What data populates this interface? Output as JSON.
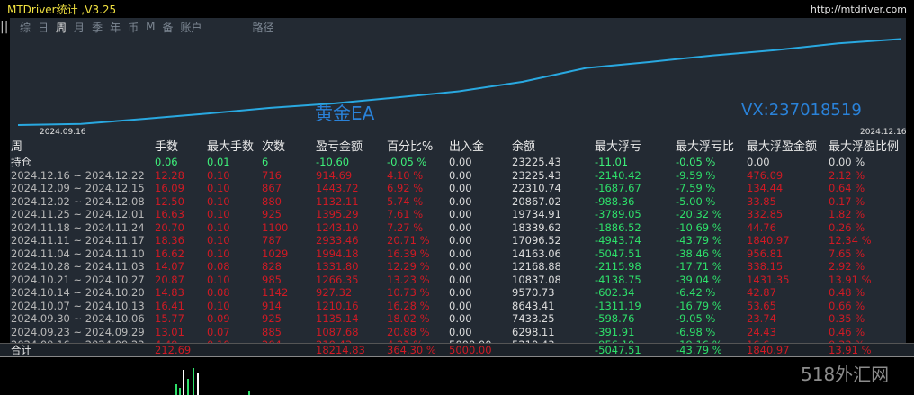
{
  "app": {
    "title": "MTDriver统计 ,V3.25",
    "url": "http://mtdriver.com"
  },
  "tabs": [
    {
      "label": "综"
    },
    {
      "label": "日"
    },
    {
      "label": "周",
      "active": true
    },
    {
      "label": "月"
    },
    {
      "label": "季"
    },
    {
      "label": "年"
    },
    {
      "label": "币"
    },
    {
      "label": "M"
    },
    {
      "label": "备"
    },
    {
      "label": "账户"
    },
    {
      "label": "路径"
    }
  ],
  "chart": {
    "watermark_left": "黄金EA",
    "watermark_right": "VX:237018519",
    "date_start": "2024.09.16",
    "date_end": "2024.12.16",
    "line_color": "#29a8e0"
  },
  "table": {
    "headers": [
      "周",
      "手数",
      "最大手数",
      "次数",
      "盈亏金额",
      "百分比%",
      "出入金",
      "余额",
      "最大浮亏",
      "最大浮亏比",
      "最大浮盈金额",
      "最大浮盈比例"
    ],
    "holding": {
      "label": "持仓",
      "lots": "0.06",
      "max_lots": "0.01",
      "count": "6",
      "pnl": "-10.60",
      "pct": "-0.05 %",
      "deposit": "0.00",
      "balance": "23225.43",
      "max_dd": "-11.01",
      "max_dd_pct": "-0.05 %",
      "max_float": "0.00",
      "max_float_pct": "0.00 %"
    },
    "rows": [
      {
        "period": "2024.12.16 ~ 2024.12.22",
        "lots": "12.28",
        "max_lots": "0.10",
        "count": "716",
        "pnl": "914.69",
        "pct": "4.10 %",
        "deposit": "0.00",
        "balance": "23225.43",
        "max_dd": "-2140.42",
        "max_dd_pct": "-9.59 %",
        "max_float": "476.09",
        "max_float_pct": "2.12 %"
      },
      {
        "period": "2024.12.09 ~ 2024.12.15",
        "lots": "16.09",
        "max_lots": "0.10",
        "count": "867",
        "pnl": "1443.72",
        "pct": "6.92 %",
        "deposit": "0.00",
        "balance": "22310.74",
        "max_dd": "-1687.67",
        "max_dd_pct": "-7.59 %",
        "max_float": "134.44",
        "max_float_pct": "0.64 %"
      },
      {
        "period": "2024.12.02 ~ 2024.12.08",
        "lots": "12.50",
        "max_lots": "0.10",
        "count": "880",
        "pnl": "1132.11",
        "pct": "5.74 %",
        "deposit": "0.00",
        "balance": "20867.02",
        "max_dd": "-988.36",
        "max_dd_pct": "-5.00 %",
        "max_float": "33.85",
        "max_float_pct": "0.17 %"
      },
      {
        "period": "2024.11.25 ~ 2024.12.01",
        "lots": "16.63",
        "max_lots": "0.10",
        "count": "925",
        "pnl": "1395.29",
        "pct": "7.61 %",
        "deposit": "0.00",
        "balance": "19734.91",
        "max_dd": "-3789.05",
        "max_dd_pct": "-20.32 %",
        "max_float": "332.85",
        "max_float_pct": "1.82 %"
      },
      {
        "period": "2024.11.18 ~ 2024.11.24",
        "lots": "20.70",
        "max_lots": "0.10",
        "count": "1100",
        "pnl": "1243.10",
        "pct": "7.27 %",
        "deposit": "0.00",
        "balance": "18339.62",
        "max_dd": "-1886.52",
        "max_dd_pct": "-10.69 %",
        "max_float": "44.76",
        "max_float_pct": "0.26 %"
      },
      {
        "period": "2024.11.11 ~ 2024.11.17",
        "lots": "18.36",
        "max_lots": "0.10",
        "count": "787",
        "pnl": "2933.46",
        "pct": "20.71 %",
        "deposit": "0.00",
        "balance": "17096.52",
        "max_dd": "-4943.74",
        "max_dd_pct": "-43.79 %",
        "max_float": "1840.97",
        "max_float_pct": "12.34 %"
      },
      {
        "period": "2024.11.04 ~ 2024.11.10",
        "lots": "16.62",
        "max_lots": "0.10",
        "count": "1029",
        "pnl": "1994.18",
        "pct": "16.39 %",
        "deposit": "0.00",
        "balance": "14163.06",
        "max_dd": "-5047.51",
        "max_dd_pct": "-38.46 %",
        "max_float": "956.81",
        "max_float_pct": "7.65 %"
      },
      {
        "period": "2024.10.28 ~ 2024.11.03",
        "lots": "14.07",
        "max_lots": "0.08",
        "count": "828",
        "pnl": "1331.80",
        "pct": "12.29 %",
        "deposit": "0.00",
        "balance": "12168.88",
        "max_dd": "-2115.98",
        "max_dd_pct": "-17.71 %",
        "max_float": "338.15",
        "max_float_pct": "2.92 %"
      },
      {
        "period": "2024.10.21 ~ 2024.10.27",
        "lots": "20.87",
        "max_lots": "0.10",
        "count": "985",
        "pnl": "1266.35",
        "pct": "13.23 %",
        "deposit": "0.00",
        "balance": "10837.08",
        "max_dd": "-4138.75",
        "max_dd_pct": "-39.04 %",
        "max_float": "1431.35",
        "max_float_pct": "13.91 %"
      },
      {
        "period": "2024.10.14 ~ 2024.10.20",
        "lots": "14.83",
        "max_lots": "0.08",
        "count": "1142",
        "pnl": "927.32",
        "pct": "10.73 %",
        "deposit": "0.00",
        "balance": "9570.73",
        "max_dd": "-602.34",
        "max_dd_pct": "-6.42 %",
        "max_float": "42.87",
        "max_float_pct": "0.48 %"
      },
      {
        "period": "2024.10.07 ~ 2024.10.13",
        "lots": "16.41",
        "max_lots": "0.10",
        "count": "914",
        "pnl": "1210.16",
        "pct": "16.28 %",
        "deposit": "0.00",
        "balance": "8643.41",
        "max_dd": "-1311.19",
        "max_dd_pct": "-16.79 %",
        "max_float": "53.65",
        "max_float_pct": "0.66 %"
      },
      {
        "period": "2024.09.30 ~ 2024.10.06",
        "lots": "15.77",
        "max_lots": "0.09",
        "count": "925",
        "pnl": "1135.14",
        "pct": "18.02 %",
        "deposit": "0.00",
        "balance": "7433.25",
        "max_dd": "-598.76",
        "max_dd_pct": "-9.05 %",
        "max_float": "23.74",
        "max_float_pct": "0.35 %"
      },
      {
        "period": "2024.09.23 ~ 2024.09.29",
        "lots": "13.01",
        "max_lots": "0.07",
        "count": "885",
        "pnl": "1087.68",
        "pct": "20.88 %",
        "deposit": "0.00",
        "balance": "6298.11",
        "max_dd": "-391.91",
        "max_dd_pct": "-6.98 %",
        "max_float": "24.43",
        "max_float_pct": "0.46 %"
      },
      {
        "period": "2024.09.16 ~ 2024.09.22",
        "lots": "4.49",
        "max_lots": "0.10",
        "count": "204",
        "pnl": "210.43",
        "pct": "4.21 %",
        "deposit": "5000.00",
        "balance": "5210.43",
        "max_dd": "-956.19",
        "max_dd_pct": "-19.16 %",
        "max_float": "16.6",
        "max_float_pct": "0.33 %"
      }
    ],
    "total": {
      "label": "合计",
      "lots": "212.69",
      "pnl": "18214.83",
      "pct": "364.30 %",
      "deposit": "5000.00",
      "max_dd": "-5047.51",
      "max_dd_pct": "-43.79 %",
      "max_float": "1840.97",
      "max_float_pct": "13.91 %"
    }
  },
  "brand_logo": "518外汇网"
}
